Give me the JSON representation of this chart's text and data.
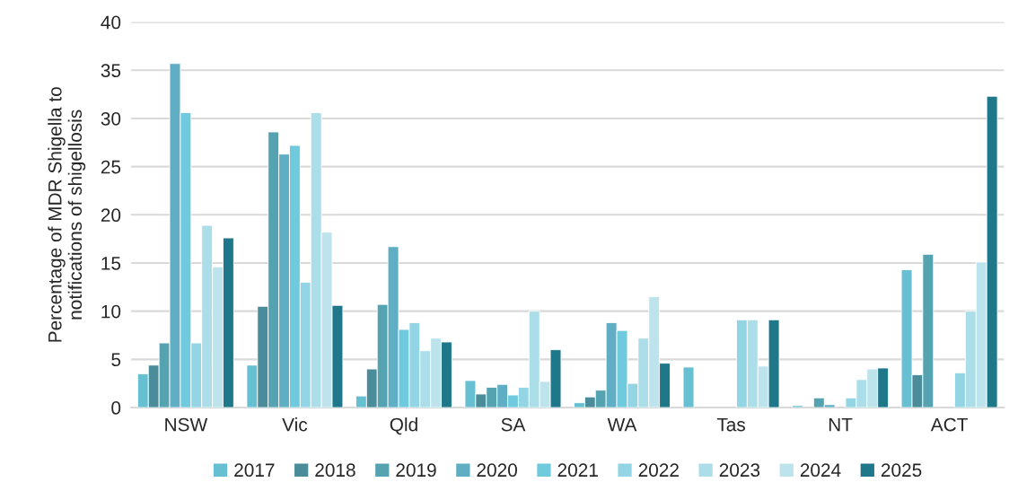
{
  "chart_data": {
    "type": "bar",
    "ylabel": "Percentage of MDR Shigella to\nnotifications of shigellosis",
    "categories": [
      "NSW",
      "Vic",
      "Qld",
      "SA",
      "WA",
      "Tas",
      "NT",
      "ACT"
    ],
    "ylim": [
      0,
      40
    ],
    "yticks": [
      0,
      5,
      10,
      15,
      20,
      25,
      30,
      35,
      40
    ],
    "grid": "y",
    "legend": "bottom",
    "series": [
      {
        "name": "2017",
        "color": "#67bfd2",
        "values": [
          3.5,
          4.4,
          1.2,
          2.8,
          0.5,
          4.2,
          0.2,
          14.3
        ]
      },
      {
        "name": "2018",
        "color": "#4a8c99",
        "values": [
          4.4,
          10.5,
          4.0,
          1.4,
          1.1,
          null,
          null,
          3.4
        ]
      },
      {
        "name": "2019",
        "color": "#55a2b0",
        "values": [
          6.7,
          28.6,
          10.7,
          2.1,
          1.8,
          null,
          1.0,
          15.9
        ]
      },
      {
        "name": "2020",
        "color": "#5faec3",
        "values": [
          35.7,
          26.3,
          16.7,
          2.4,
          8.8,
          null,
          0.3,
          null
        ]
      },
      {
        "name": "2021",
        "color": "#6fcade",
        "values": [
          30.6,
          27.2,
          8.1,
          1.3,
          8.0,
          null,
          null,
          null
        ]
      },
      {
        "name": "2022",
        "color": "#93d4e5",
        "values": [
          6.7,
          13.0,
          8.8,
          2.1,
          2.5,
          9.1,
          1.0,
          3.6
        ]
      },
      {
        "name": "2023",
        "color": "#acdeea",
        "values": [
          18.9,
          30.6,
          5.9,
          10.0,
          7.2,
          9.1,
          2.9,
          10.0
        ]
      },
      {
        "name": "2024",
        "color": "#bde3ed",
        "values": [
          14.6,
          18.2,
          7.2,
          2.7,
          11.5,
          4.3,
          4.0,
          15.1
        ]
      },
      {
        "name": "2025",
        "color": "#1f7889",
        "values": [
          17.6,
          10.6,
          6.8,
          6.0,
          4.6,
          9.1,
          4.1,
          32.3
        ]
      }
    ]
  }
}
